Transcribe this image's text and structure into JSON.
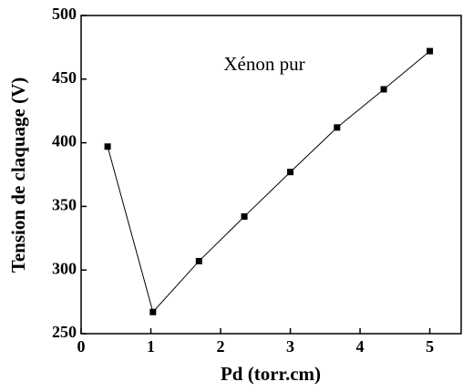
{
  "chart_data": {
    "type": "line",
    "x_label": "Pd (torr.cm)",
    "y_label": "Tension de claquage (V)",
    "annotation": "Xénon pur",
    "x": [
      0.38,
      1.03,
      1.69,
      2.34,
      3.0,
      3.67,
      4.34,
      5.0
    ],
    "series": [
      {
        "name": "Xénon pur",
        "color": "#000000",
        "values": [
          397,
          267,
          307,
          342,
          377,
          412,
          442,
          472
        ]
      }
    ],
    "xlim": [
      0,
      5.45
    ],
    "xticks": [
      0,
      1,
      2,
      3,
      4,
      5
    ],
    "ylim": [
      250,
      500
    ],
    "yticks": [
      250,
      300,
      350,
      400,
      450,
      500
    ],
    "marker": "square"
  }
}
